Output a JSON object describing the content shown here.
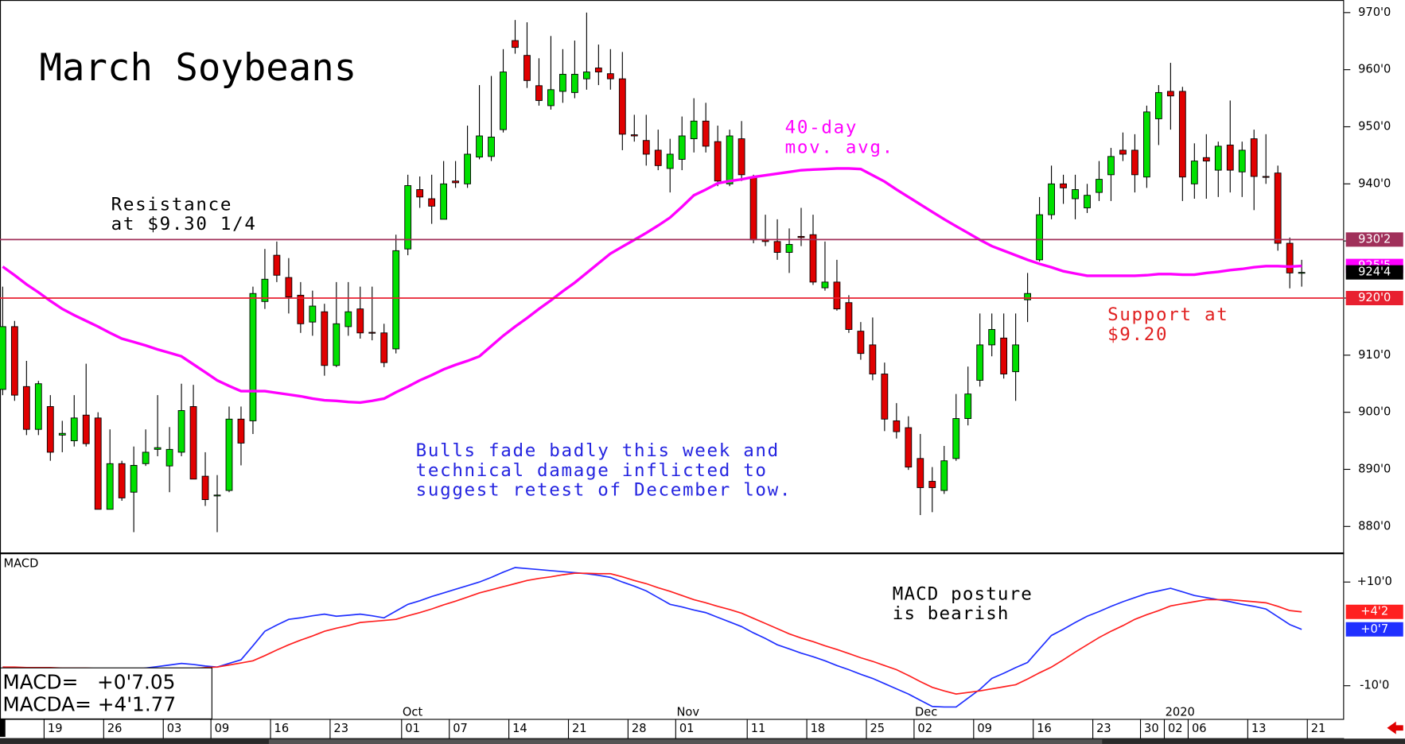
{
  "chart_data": [
    {
      "type": "candlestick",
      "title": "March Soybeans",
      "categories": [
        null,
        null,
        null,
        null,
        "19",
        null,
        null,
        null,
        null,
        "26",
        null,
        null,
        null,
        null,
        "03",
        null,
        null,
        null,
        "09",
        null,
        null,
        null,
        null,
        "16",
        null,
        null,
        null,
        null,
        "23",
        null,
        null,
        null,
        null,
        null,
        "01",
        null,
        null,
        null,
        "07",
        null,
        null,
        null,
        null,
        "14",
        null,
        null,
        null,
        null,
        "21",
        null,
        null,
        null,
        null,
        "28",
        null,
        null,
        null,
        "01",
        null,
        null,
        null,
        null,
        null,
        "11",
        null,
        null,
        null,
        null,
        "18",
        null,
        null,
        null,
        null,
        "25",
        null,
        null,
        null,
        "02",
        null,
        null,
        null,
        null,
        "09",
        null,
        null,
        null,
        null,
        "16",
        null,
        null,
        null,
        null,
        "23",
        null,
        null,
        null,
        "30",
        null,
        "02",
        null,
        "06",
        null,
        null,
        null,
        null,
        "13",
        null,
        null,
        null,
        null,
        "21"
      ],
      "month_labels": [
        {
          "category": 34,
          "label": "Oct"
        },
        {
          "category": 57,
          "label": "Nov"
        },
        {
          "category": 77,
          "label": "Dec"
        },
        {
          "category": 98,
          "label": "2020"
        }
      ],
      "open": [
        904,
        915,
        904.5,
        897,
        901,
        896,
        895,
        899.5,
        899,
        883,
        891,
        886,
        891,
        893.5,
        890.6,
        893,
        901,
        888.8,
        885.5,
        886.3,
        898.8,
        898.5,
        919.4,
        927.5,
        923.6,
        920.5,
        915.8,
        917.6,
        908.2,
        915,
        918.1,
        914,
        913.9,
        911.1,
        928.6,
        939,
        937.4,
        933.8,
        940.5,
        940,
        944.7,
        944.8,
        949.5,
        965.1,
        962.5,
        957.2,
        953.7,
        956.2,
        956,
        958.4,
        960.3,
        959.3,
        958.4,
        948.6,
        947.6,
        945.9,
        942.7,
        944.3,
        947.9,
        951,
        947.4,
        940,
        947.9,
        941.2,
        930.2,
        929.9,
        928,
        930.8,
        931.1,
        921.8,
        922.8,
        919.2,
        914.2,
        911.8,
        906.7,
        898.5,
        897.3,
        891.9,
        887.9,
        886.3,
        891.9,
        898.9,
        905.6,
        911.8,
        913,
        907.1,
        919.7,
        926.7,
        934.6,
        940,
        937.4,
        935.8,
        938.5,
        941.6,
        945.9,
        945.9,
        941.2,
        951.4,
        956.2,
        956.2,
        940,
        944.6,
        942.4,
        946.8,
        942.1,
        947.9,
        941.3,
        941.9,
        929.6,
        924.4,
        null
      ],
      "high": [
        922,
        916,
        909,
        905.5,
        903,
        898.5,
        903,
        908.5,
        900,
        897,
        891.5,
        894,
        897,
        903,
        897.4,
        905,
        904.8,
        893,
        889,
        901,
        901,
        922,
        928.6,
        929.9,
        927,
        922.8,
        921.3,
        919,
        922.8,
        922.8,
        922,
        922,
        915.5,
        931.1,
        941.6,
        941.3,
        941.6,
        944,
        944,
        950.2,
        957.3,
        958.9,
        963.6,
        968.7,
        968.3,
        962,
        965.9,
        963.6,
        965.1,
        970,
        964.4,
        963.6,
        963.1,
        952.1,
        952.1,
        949.5,
        947.9,
        951.8,
        955,
        954.2,
        950.2,
        949.5,
        951,
        941.6,
        934.6,
        933.8,
        932.2,
        935.8,
        934.6,
        929.9,
        926.7,
        920.5,
        915.8,
        916.6,
        908.7,
        901.6,
        899.3,
        896.2,
        890.4,
        894.1,
        903.2,
        908,
        917.3,
        917.3,
        917.3,
        917.3,
        924.4,
        937.7,
        943.2,
        941.6,
        941.6,
        940,
        944,
        946.3,
        949,
        948.7,
        953.7,
        957.3,
        961.2,
        957,
        947.1,
        948.7,
        947.4,
        954.6,
        947.4,
        949.5,
        948.7,
        943.2,
        930.6,
        926.7,
        null
      ],
      "low": [
        903,
        902,
        896,
        896,
        891.5,
        893,
        894,
        894,
        883,
        883,
        884.5,
        879,
        890.6,
        892.3,
        886,
        892.3,
        888.3,
        883.6,
        879,
        886,
        890.7,
        896.2,
        918.1,
        922.8,
        917.3,
        913.9,
        913.4,
        906.4,
        907.9,
        913.4,
        912.9,
        912.6,
        907.9,
        910.3,
        927.5,
        935.8,
        933,
        933.8,
        939.3,
        939.3,
        944.3,
        944,
        949,
        962.8,
        956.8,
        953.7,
        953,
        954.2,
        955,
        956.5,
        957.3,
        956.5,
        945.9,
        947.4,
        943.2,
        942.4,
        938.5,
        942.4,
        945.5,
        945.5,
        939.6,
        939.6,
        940.5,
        929.6,
        929.1,
        926.7,
        924.4,
        929.1,
        922.3,
        921.3,
        917.8,
        913.9,
        909.2,
        905.6,
        896.7,
        895.4,
        889.9,
        882,
        882.5,
        885.7,
        891.5,
        897.7,
        904.5,
        909.8,
        905.9,
        902,
        915.8,
        926.4,
        933.8,
        936.5,
        933.8,
        934.9,
        937,
        937,
        944,
        938.5,
        939.3,
        946.8,
        949.5,
        937,
        937.4,
        937.4,
        937.7,
        938.5,
        937.7,
        935.4,
        940,
        928.3,
        921.7,
        922,
        null
      ],
      "close": [
        915,
        903,
        897,
        905,
        893,
        896.3,
        899,
        894.5,
        883,
        891,
        885,
        890.7,
        893,
        893.8,
        893.5,
        900.3,
        888.3,
        884.7,
        885.5,
        898.8,
        894.6,
        920.8,
        923.3,
        924,
        920.2,
        915.5,
        918.6,
        908.2,
        915.5,
        917.6,
        913.9,
        913.9,
        908.7,
        928.3,
        939.7,
        937.7,
        936.1,
        940,
        940.2,
        945.2,
        948.4,
        948.2,
        959.6,
        963.9,
        958.1,
        954.6,
        956.5,
        959.2,
        959.2,
        959.6,
        959.6,
        958.4,
        948.7,
        948.4,
        945.2,
        943.2,
        945.2,
        948.4,
        951,
        946.6,
        940.5,
        948.4,
        941.6,
        930.2,
        929.9,
        928,
        929.4,
        930.6,
        922.8,
        922.8,
        918.1,
        914.5,
        910.3,
        906.7,
        898.8,
        896.6,
        890.4,
        886.8,
        886.8,
        891.5,
        898.9,
        903.2,
        911.8,
        914.5,
        906.7,
        911.8,
        920.8,
        934.6,
        940,
        939.3,
        939,
        938,
        940.8,
        944.8,
        945.2,
        941.6,
        952.6,
        956,
        955.4,
        941.2,
        944,
        944,
        946.6,
        942.4,
        945.9,
        941.3,
        941.2,
        929.6,
        924.4,
        924.5,
        null
      ],
      "up_color": "#00e000",
      "down_color": "#e00000",
      "moving_average": {
        "color": "#ff00ff",
        "values": [
          925.5,
          924,
          922.4,
          921,
          919.5,
          918.1,
          917,
          916,
          915,
          913.9,
          912.9,
          912.3,
          911.7,
          911,
          910.4,
          909.8,
          908.4,
          907,
          905.6,
          904.6,
          903.7,
          903.7,
          903.7,
          903.4,
          903.1,
          902.8,
          902.4,
          902.1,
          902,
          901.8,
          901.7,
          902,
          902.4,
          903.5,
          904.5,
          905.6,
          906.5,
          907.5,
          908.3,
          909,
          909.8,
          911.6,
          913.4,
          915,
          916.5,
          918.1,
          919.6,
          921.2,
          922.7,
          924.4,
          926.1,
          927.8,
          929,
          930.2,
          931.4,
          932.7,
          934.1,
          936,
          938,
          939,
          940.1,
          940.5,
          940.8,
          941.2,
          941.5,
          941.8,
          942.1,
          942.4,
          942.5,
          942.6,
          942.7,
          942.7,
          942.6,
          941.5,
          940.4,
          939,
          937.7,
          936.4,
          935.1,
          933.8,
          932.6,
          931.4,
          930.2,
          929.1,
          928.3,
          927.5,
          926.7,
          926,
          925.4,
          924.7,
          924.3,
          923.9,
          923.9,
          923.9,
          923.9,
          923.9,
          924,
          924.2,
          924.2,
          924.1,
          924.1,
          924.4,
          924.6,
          924.9,
          925.1,
          925.4,
          925.6,
          925.6,
          925.5,
          925.625,
          null
        ]
      },
      "ylim": [
        875.3,
        972.2
      ],
      "yticks": [
        {
          "value": 970,
          "label": "970'0"
        },
        {
          "value": 960,
          "label": "960'0"
        },
        {
          "value": 950,
          "label": "950'0"
        },
        {
          "value": 940,
          "label": "940'0"
        },
        {
          "value": 930,
          "label": "930'0"
        },
        {
          "value": 920,
          "label": "920'0"
        },
        {
          "value": 910,
          "label": "910'0"
        },
        {
          "value": 900,
          "label": "900'0"
        },
        {
          "value": 890,
          "label": "890'0"
        },
        {
          "value": 880,
          "label": "880'0"
        }
      ],
      "levels": [
        {
          "value": 930.25,
          "label": "930'2",
          "color": "#a0305a"
        },
        {
          "value": 920,
          "label": "920'0",
          "color": "#e82030"
        }
      ],
      "value_boxes": [
        {
          "value": 925.625,
          "label": "925'5",
          "color": "#ff00ff"
        },
        {
          "value": 924.5,
          "label": "924'4",
          "color": "#000000"
        }
      ],
      "annotations": [
        {
          "lines": [
            "Resistance",
            "at $9.30 1/4"
          ],
          "color": "#000000"
        },
        {
          "lines": [
            "40-day",
            "mov. avg."
          ],
          "color": "#ff00ff"
        },
        {
          "lines": [
            "Bulls fade badly this week and",
            "technical damage inflicted to",
            "suggest retest of December low."
          ],
          "color": "#2424e0"
        },
        {
          "lines": [
            "Support at",
            "$9.20"
          ],
          "color": "#e02020"
        }
      ]
    },
    {
      "type": "line",
      "title": "MACD",
      "series": [
        {
          "color": "#2030ff",
          "values": [
            -6.4,
            -6.5,
            -6.5,
            -6.6,
            -6.7,
            -6.8,
            -6.8,
            -6.9,
            -6.9,
            -6.9,
            -6.9,
            -6.9,
            -6.6,
            -6.3,
            -6,
            -5.7,
            -5.9,
            -6.2,
            -6.4,
            -5.7,
            -5,
            -2.3,
            0.5,
            1.7,
            2.8,
            3.1,
            3.5,
            3.8,
            3.4,
            3.6,
            3.8,
            3.5,
            3.1,
            4.4,
            5.7,
            6.4,
            7.2,
            7.9,
            8.6,
            9.3,
            10,
            10.9,
            11.9,
            12.8,
            12.6,
            12.4,
            12.2,
            12,
            11.8,
            11.6,
            11.3,
            10.9,
            10,
            9.2,
            8.3,
            7,
            5.7,
            5.2,
            4.6,
            4.1,
            3.2,
            2.3,
            1.4,
            0.2,
            -0.9,
            -2.1,
            -2.9,
            -3.7,
            -4.4,
            -5.2,
            -6.1,
            -6.9,
            -7.8,
            -8.6,
            -9.6,
            -10.6,
            -11.6,
            -12.8,
            -14,
            -14.1,
            -14.1,
            -12.4,
            -10.7,
            -8.6,
            -7.6,
            -6.5,
            -5.5,
            -2.9,
            -0.3,
            0.9,
            2.2,
            3.4,
            4.3,
            5.3,
            6.2,
            7,
            7.8,
            8.3,
            8.8,
            8.1,
            7.4,
            7,
            6.6,
            6.2,
            5.7,
            5.3,
            4.8,
            3.3,
            1.8,
            0.875,
            null
          ]
        },
        {
          "color": "#ff2020",
          "values": [
            -6.4,
            -6.4,
            -6.5,
            -6.5,
            -6.5,
            -6.6,
            -6.6,
            -6.6,
            -6.7,
            -6.8,
            -6.9,
            -7.1,
            -7.2,
            -7.1,
            -7,
            -6.8,
            -6.7,
            -6.5,
            -6.4,
            -6,
            -5.6,
            -5.2,
            -4.2,
            -3.1,
            -2.1,
            -1.2,
            -0.4,
            0.5,
            1.1,
            1.6,
            2.2,
            2.4,
            2.6,
            2.8,
            3.5,
            4.1,
            4.8,
            5.6,
            6.3,
            7.1,
            7.9,
            8.5,
            9.1,
            9.7,
            10.3,
            10.7,
            11,
            11.4,
            11.7,
            11.7,
            11.6,
            11.6,
            11,
            10.3,
            9.7,
            8.9,
            8.2,
            7.4,
            6.6,
            6,
            5.3,
            4.7,
            4,
            3,
            2,
            1,
            0,
            -0.8,
            -1.5,
            -2.3,
            -3,
            -3.8,
            -4.6,
            -5.3,
            -6.1,
            -6.9,
            -8,
            -9.2,
            -10.3,
            -11,
            -11.6,
            -11.3,
            -11,
            -10.6,
            -10.2,
            -9.8,
            -8.7,
            -7.5,
            -6.4,
            -5,
            -3.5,
            -2.1,
            -0.7,
            0.5,
            1.6,
            2.8,
            3.7,
            4.5,
            5.4,
            5.8,
            6.2,
            6.6,
            6.6,
            6.6,
            6.4,
            6.2,
            6,
            5.3,
            4.5,
            4.25,
            null
          ]
        }
      ],
      "ylim": [
        -16.4,
        15.2
      ],
      "yticks": [
        {
          "value": 10,
          "label": "+10'0"
        },
        {
          "value": -10,
          "label": "-10'0"
        }
      ],
      "value_boxes": [
        {
          "value": 4.25,
          "label": "+4'2",
          "color": "#ff2020"
        },
        {
          "value": 0.875,
          "label": "+0'7",
          "color": "#2030ff"
        }
      ],
      "info_lines": [
        "MACD=   +0'7.05",
        "MACDA= +4'1.77"
      ],
      "annotation": {
        "lines": [
          "MACD posture",
          "is bearish"
        ],
        "color": "#000000"
      }
    }
  ]
}
